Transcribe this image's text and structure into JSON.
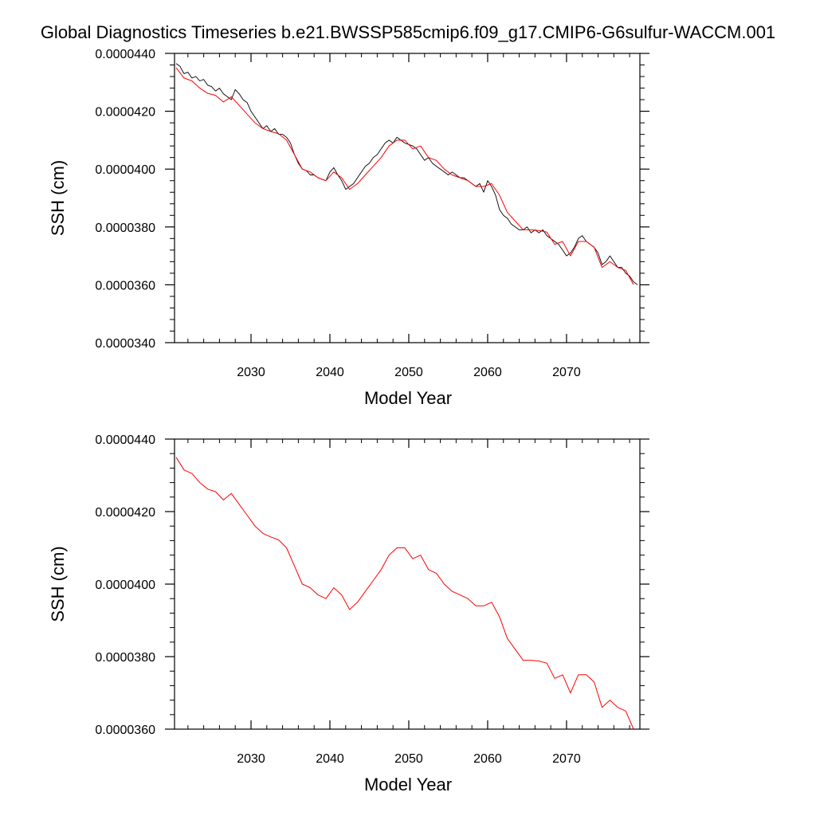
{
  "title": "Global Diagnostics Timeseries b.e21.BWSSP585cmip6.f09_g17.CMIP6-G6sulfur-WACCM.001",
  "colors": {
    "monthly": "#000000",
    "annual": "#ff0000"
  },
  "chart_data": [
    {
      "type": "line",
      "xlabel": "Model Year",
      "ylabel": "SSH (cm)",
      "xlim": [
        2020.3,
        2079.3
      ],
      "ylim": [
        3.4e-05,
        4.4e-05
      ],
      "x_ticks": [
        2030,
        2040,
        2050,
        2060,
        2070
      ],
      "x_tick_labels": [
        "2030",
        "2040",
        "2050",
        "2060",
        "2070"
      ],
      "y_ticks": [
        3.4e-05,
        3.6e-05,
        3.8e-05,
        4e-05,
        4.2e-05,
        4.4e-05
      ],
      "y_tick_labels": [
        "0.0000340",
        "0.0000360",
        "0.0000380",
        "0.0000400",
        "0.0000420",
        "0.0000440"
      ],
      "series": [
        {
          "color": "#000000",
          "x": [
            2020.5,
            2021.0,
            2021.5,
            2022.0,
            2022.5,
            2023.0,
            2023.5,
            2024.0,
            2024.5,
            2025.0,
            2025.5,
            2026.0,
            2026.5,
            2027.0,
            2027.5,
            2028.0,
            2028.5,
            2029.0,
            2029.5,
            2030.0,
            2030.5,
            2031.0,
            2031.5,
            2032.0,
            2032.5,
            2033.0,
            2033.5,
            2034.0,
            2034.5,
            2035.0,
            2035.5,
            2036.0,
            2036.5,
            2037.0,
            2037.5,
            2038.0,
            2038.5,
            2039.0,
            2039.5,
            2040.0,
            2040.5,
            2041.0,
            2041.5,
            2042.0,
            2042.5,
            2043.0,
            2043.5,
            2044.0,
            2044.5,
            2045.0,
            2045.5,
            2046.0,
            2046.5,
            2047.0,
            2047.5,
            2048.0,
            2048.5,
            2049.0,
            2049.5,
            2050.0,
            2050.5,
            2051.0,
            2051.5,
            2052.0,
            2052.5,
            2053.0,
            2053.5,
            2054.0,
            2054.5,
            2055.0,
            2055.5,
            2056.0,
            2056.5,
            2057.0,
            2057.5,
            2058.0,
            2058.5,
            2059.0,
            2059.5,
            2060.0,
            2060.5,
            2061.0,
            2061.5,
            2062.0,
            2062.5,
            2063.0,
            2063.5,
            2064.0,
            2064.5,
            2065.0,
            2065.5,
            2066.0,
            2066.5,
            2067.0,
            2067.5,
            2068.0,
            2068.5,
            2069.0,
            2069.5,
            2070.0,
            2070.5,
            2071.0,
            2071.5,
            2072.0,
            2072.5,
            2073.0,
            2073.5,
            2074.0,
            2074.5,
            2075.0,
            2075.5,
            2076.0,
            2076.5,
            2077.0,
            2077.5,
            2078.0,
            2078.5,
            2079.0
          ],
          "values": [
            4.365e-05,
            4.355e-05,
            4.33e-05,
            4.335e-05,
            4.315e-05,
            4.32e-05,
            4.305e-05,
            4.31e-05,
            4.29e-05,
            4.285e-05,
            4.27e-05,
            4.28e-05,
            4.26e-05,
            4.25e-05,
            4.24e-05,
            4.275e-05,
            4.26e-05,
            4.24e-05,
            4.23e-05,
            4.2e-05,
            4.18e-05,
            4.16e-05,
            4.14e-05,
            4.15e-05,
            4.13e-05,
            4.14e-05,
            4.12e-05,
            4.12e-05,
            4.11e-05,
            4.09e-05,
            4.05e-05,
            4.02e-05,
            4e-05,
            3.995e-05,
            3.98e-05,
            3.98e-05,
            3.97e-05,
            3.965e-05,
            3.96e-05,
            3.99e-05,
            4.005e-05,
            3.98e-05,
            3.96e-05,
            3.93e-05,
            3.94e-05,
            3.95e-05,
            3.97e-05,
            3.99e-05,
            4.01e-05,
            4.02e-05,
            4.04e-05,
            4.05e-05,
            4.07e-05,
            4.09e-05,
            4.1e-05,
            4.09e-05,
            4.11e-05,
            4.1e-05,
            4.09e-05,
            4.085e-05,
            4.08e-05,
            4.07e-05,
            4.05e-05,
            4.03e-05,
            4.04e-05,
            4.02e-05,
            4.01e-05,
            4e-05,
            3.99e-05,
            3.98e-05,
            3.99e-05,
            3.98e-05,
            3.97e-05,
            3.97e-05,
            3.96e-05,
            3.95e-05,
            3.94e-05,
            3.95e-05,
            3.92e-05,
            3.96e-05,
            3.94e-05,
            3.91e-05,
            3.86e-05,
            3.84e-05,
            3.83e-05,
            3.81e-05,
            3.8e-05,
            3.79e-05,
            3.79e-05,
            3.8e-05,
            3.78e-05,
            3.79e-05,
            3.78e-05,
            3.79e-05,
            3.77e-05,
            3.76e-05,
            3.75e-05,
            3.74e-05,
            3.72e-05,
            3.7e-05,
            3.71e-05,
            3.73e-05,
            3.76e-05,
            3.77e-05,
            3.75e-05,
            3.74e-05,
            3.73e-05,
            3.71e-05,
            3.67e-05,
            3.68e-05,
            3.7e-05,
            3.68e-05,
            3.66e-05,
            3.66e-05,
            3.64e-05,
            3.63e-05,
            3.61e-05,
            3.6e-05
          ]
        },
        {
          "color": "#ff0000",
          "x": [
            2020.5,
            2021.5,
            2022.5,
            2023.5,
            2024.5,
            2025.5,
            2026.5,
            2027.5,
            2028.5,
            2029.5,
            2030.5,
            2031.5,
            2032.5,
            2033.5,
            2034.5,
            2035.5,
            2036.5,
            2037.5,
            2038.5,
            2039.5,
            2040.5,
            2041.5,
            2042.5,
            2043.5,
            2044.5,
            2045.5,
            2046.5,
            2047.5,
            2048.5,
            2049.5,
            2050.5,
            2051.5,
            2052.5,
            2053.5,
            2054.5,
            2055.5,
            2056.5,
            2057.5,
            2058.5,
            2059.5,
            2060.5,
            2061.5,
            2062.5,
            2063.5,
            2064.5,
            2065.5,
            2066.5,
            2067.5,
            2068.5,
            2069.5,
            2070.5,
            2071.5,
            2072.5,
            2073.5,
            2074.5,
            2075.5,
            2076.5,
            2077.5,
            2078.5
          ],
          "values": [
            4.35e-05,
            4.315e-05,
            4.305e-05,
            4.28e-05,
            4.262e-05,
            4.255e-05,
            4.232e-05,
            4.25e-05,
            4.22e-05,
            4.19e-05,
            4.16e-05,
            4.14e-05,
            4.13e-05,
            4.122e-05,
            4.1e-05,
            4.05e-05,
            4e-05,
            3.99e-05,
            3.97e-05,
            3.96e-05,
            3.99e-05,
            3.97e-05,
            3.93e-05,
            3.95e-05,
            3.98e-05,
            4.01e-05,
            4.04e-05,
            4.08e-05,
            4.1e-05,
            4.1e-05,
            4.07e-05,
            4.08e-05,
            4.04e-05,
            4.03e-05,
            4e-05,
            3.98e-05,
            3.97e-05,
            3.96e-05,
            3.94e-05,
            3.94e-05,
            3.95e-05,
            3.91e-05,
            3.85e-05,
            3.82e-05,
            3.79e-05,
            3.79e-05,
            3.788e-05,
            3.782e-05,
            3.74e-05,
            3.75e-05,
            3.7e-05,
            3.75e-05,
            3.75e-05,
            3.73e-05,
            3.66e-05,
            3.68e-05,
            3.66e-05,
            3.65e-05,
            3.6e-05
          ]
        }
      ]
    },
    {
      "type": "line",
      "xlabel": "Model Year",
      "ylabel": "SSH (cm)",
      "xlim": [
        2020.3,
        2079.3
      ],
      "ylim": [
        3.6e-05,
        4.4e-05
      ],
      "x_ticks": [
        2030,
        2040,
        2050,
        2060,
        2070
      ],
      "x_tick_labels": [
        "2030",
        "2040",
        "2050",
        "2060",
        "2070"
      ],
      "y_ticks": [
        3.6e-05,
        3.8e-05,
        4e-05,
        4.2e-05,
        4.4e-05
      ],
      "y_tick_labels": [
        "0.0000360",
        "0.0000380",
        "0.0000400",
        "0.0000420",
        "0.0000440"
      ],
      "series": [
        {
          "color": "#ff0000",
          "x": [
            2020.5,
            2021.5,
            2022.5,
            2023.5,
            2024.5,
            2025.5,
            2026.5,
            2027.5,
            2028.5,
            2029.5,
            2030.5,
            2031.5,
            2032.5,
            2033.5,
            2034.5,
            2035.5,
            2036.5,
            2037.5,
            2038.5,
            2039.5,
            2040.5,
            2041.5,
            2042.5,
            2043.5,
            2044.5,
            2045.5,
            2046.5,
            2047.5,
            2048.5,
            2049.5,
            2050.5,
            2051.5,
            2052.5,
            2053.5,
            2054.5,
            2055.5,
            2056.5,
            2057.5,
            2058.5,
            2059.5,
            2060.5,
            2061.5,
            2062.5,
            2063.5,
            2064.5,
            2065.5,
            2066.5,
            2067.5,
            2068.5,
            2069.5,
            2070.5,
            2071.5,
            2072.5,
            2073.5,
            2074.5,
            2075.5,
            2076.5,
            2077.5,
            2078.5
          ],
          "values": [
            4.35e-05,
            4.315e-05,
            4.305e-05,
            4.28e-05,
            4.262e-05,
            4.255e-05,
            4.232e-05,
            4.25e-05,
            4.22e-05,
            4.19e-05,
            4.16e-05,
            4.14e-05,
            4.13e-05,
            4.122e-05,
            4.1e-05,
            4.05e-05,
            4e-05,
            3.99e-05,
            3.97e-05,
            3.96e-05,
            3.99e-05,
            3.97e-05,
            3.93e-05,
            3.95e-05,
            3.98e-05,
            4.01e-05,
            4.04e-05,
            4.08e-05,
            4.1e-05,
            4.1e-05,
            4.07e-05,
            4.08e-05,
            4.04e-05,
            4.03e-05,
            4e-05,
            3.98e-05,
            3.97e-05,
            3.96e-05,
            3.94e-05,
            3.94e-05,
            3.95e-05,
            3.91e-05,
            3.85e-05,
            3.82e-05,
            3.79e-05,
            3.79e-05,
            3.788e-05,
            3.782e-05,
            3.74e-05,
            3.75e-05,
            3.7e-05,
            3.75e-05,
            3.75e-05,
            3.73e-05,
            3.66e-05,
            3.68e-05,
            3.66e-05,
            3.65e-05,
            3.6e-05
          ]
        }
      ]
    }
  ]
}
